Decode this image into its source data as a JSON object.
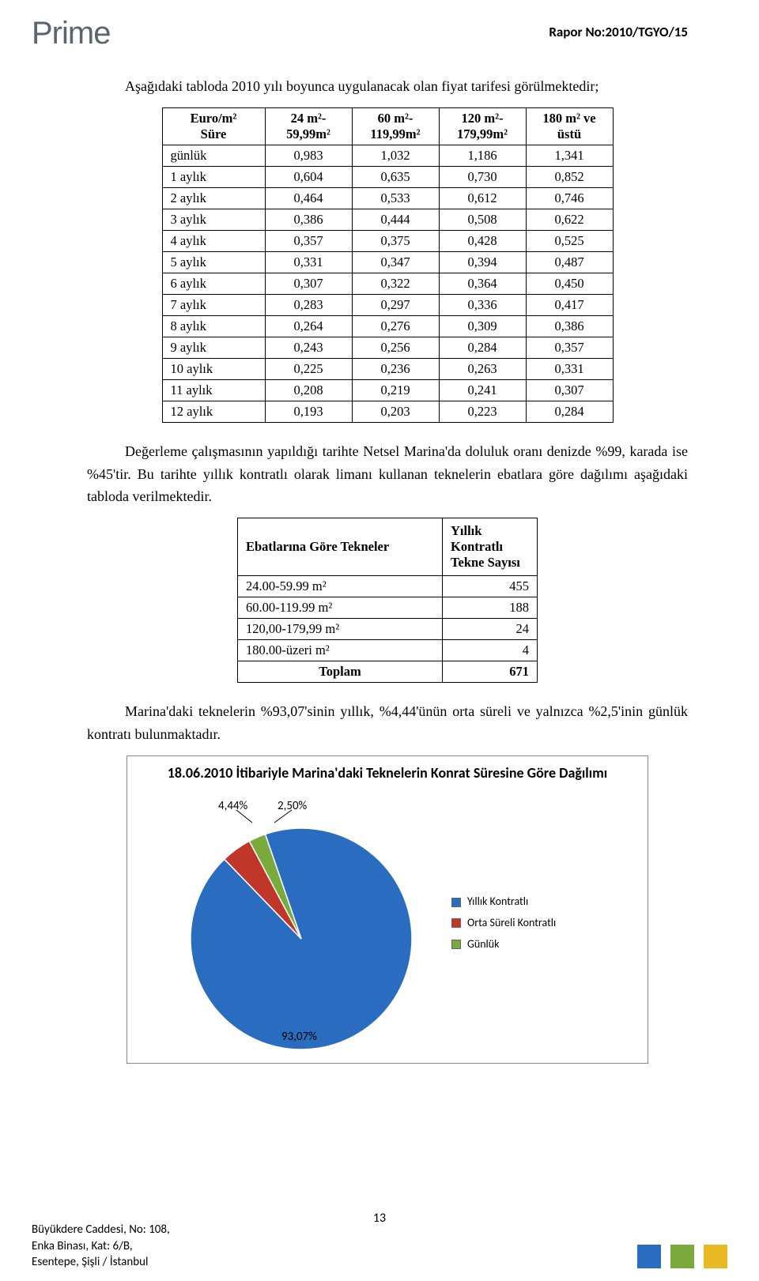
{
  "logo_text": "Prime",
  "report_no": "Rapor No:2010/TGYO/15",
  "intro_para": "Aşağıdaki tabloda 2010 yılı boyunca uygulanacak olan fiyat tarifesi görülmektedir;",
  "table1": {
    "head_left_top": "Euro/m²",
    "head_left_bottom": "Süre",
    "cols": [
      "24 m²- 59,99m²",
      "60 m²- 119,99m²",
      "120 m²- 179,99m²",
      "180 m² ve üstü"
    ],
    "rows": [
      {
        "label": "günlük",
        "v": [
          "0,983",
          "1,032",
          "1,186",
          "1,341"
        ]
      },
      {
        "label": "1 aylık",
        "v": [
          "0,604",
          "0,635",
          "0,730",
          "0,852"
        ]
      },
      {
        "label": "2 aylık",
        "v": [
          "0,464",
          "0,533",
          "0,612",
          "0,746"
        ]
      },
      {
        "label": "3 aylık",
        "v": [
          "0,386",
          "0,444",
          "0,508",
          "0,622"
        ]
      },
      {
        "label": "4 aylık",
        "v": [
          "0,357",
          "0,375",
          "0,428",
          "0,525"
        ]
      },
      {
        "label": "5 aylık",
        "v": [
          "0,331",
          "0,347",
          "0,394",
          "0,487"
        ]
      },
      {
        "label": "6 aylık",
        "v": [
          "0,307",
          "0,322",
          "0,364",
          "0,450"
        ]
      },
      {
        "label": "7 aylık",
        "v": [
          "0,283",
          "0,297",
          "0,336",
          "0,417"
        ]
      },
      {
        "label": "8 aylık",
        "v": [
          "0,264",
          "0,276",
          "0,309",
          "0,386"
        ]
      },
      {
        "label": "9 aylık",
        "v": [
          "0,243",
          "0,256",
          "0,284",
          "0,357"
        ]
      },
      {
        "label": "10 aylık",
        "v": [
          "0,225",
          "0,236",
          "0,263",
          "0,331"
        ]
      },
      {
        "label": "11 aylık",
        "v": [
          "0,208",
          "0,219",
          "0,241",
          "0,307"
        ]
      },
      {
        "label": "12 aylık",
        "v": [
          "0,193",
          "0,203",
          "0,223",
          "0,284"
        ]
      }
    ]
  },
  "mid_para": "Değerleme çalışmasının yapıldığı tarihte Netsel Marina'da doluluk oranı denizde %99, karada ise %45'tir. Bu tarihte yıllık kontratlı olarak limanı kullanan teknelerin ebatlara göre dağılımı aşağıdaki tabloda verilmektedir.",
  "table2": {
    "head_left": "Ebatlarına Göre Tekneler",
    "head_right": "Yıllık Kontratlı Tekne Sayısı",
    "rows": [
      {
        "label": "24.00-59.99 m²",
        "v": "455"
      },
      {
        "label": "60.00-119.99 m²",
        "v": "188"
      },
      {
        "label": "120,00-179,99 m²",
        "v": "24"
      },
      {
        "label": "180.00-üzeri m²",
        "v": "4"
      },
      {
        "label": "Toplam",
        "v": "671",
        "bold": true
      }
    ]
  },
  "post_para": "Marina'daki teknelerin %93,07'sinin yıllık, %4,44'ünün orta süreli ve yalnızca %2,5'inin günlük kontratı bulunmaktadır.",
  "chart": {
    "title": "18.06.2010 İtibariyle Marina'daki Teknelerin Konrat Süresine Göre Dağılımı",
    "slices": [
      {
        "label": "Yıllık Kontratlı",
        "value": 93.07,
        "color": "#2a6dc0",
        "text": "93,07%"
      },
      {
        "label": "Orta Süreli Kontratlı",
        "value": 4.44,
        "color": "#c0372a",
        "text": "4,44%"
      },
      {
        "label": "Günlük",
        "value": 2.5,
        "color": "#7aa93c",
        "text": "2,50%"
      }
    ],
    "diameter": 280
  },
  "page_num": "13",
  "footer": {
    "l1": "Büyükdere Caddesi, No: 108,",
    "l2": "Enka Binası, Kat: 6/B,",
    "l3": "Esentepe, Şişli / İstanbul"
  },
  "strip_colors": [
    "#2a6dc0",
    "#7aa93c",
    "#e8b923"
  ]
}
